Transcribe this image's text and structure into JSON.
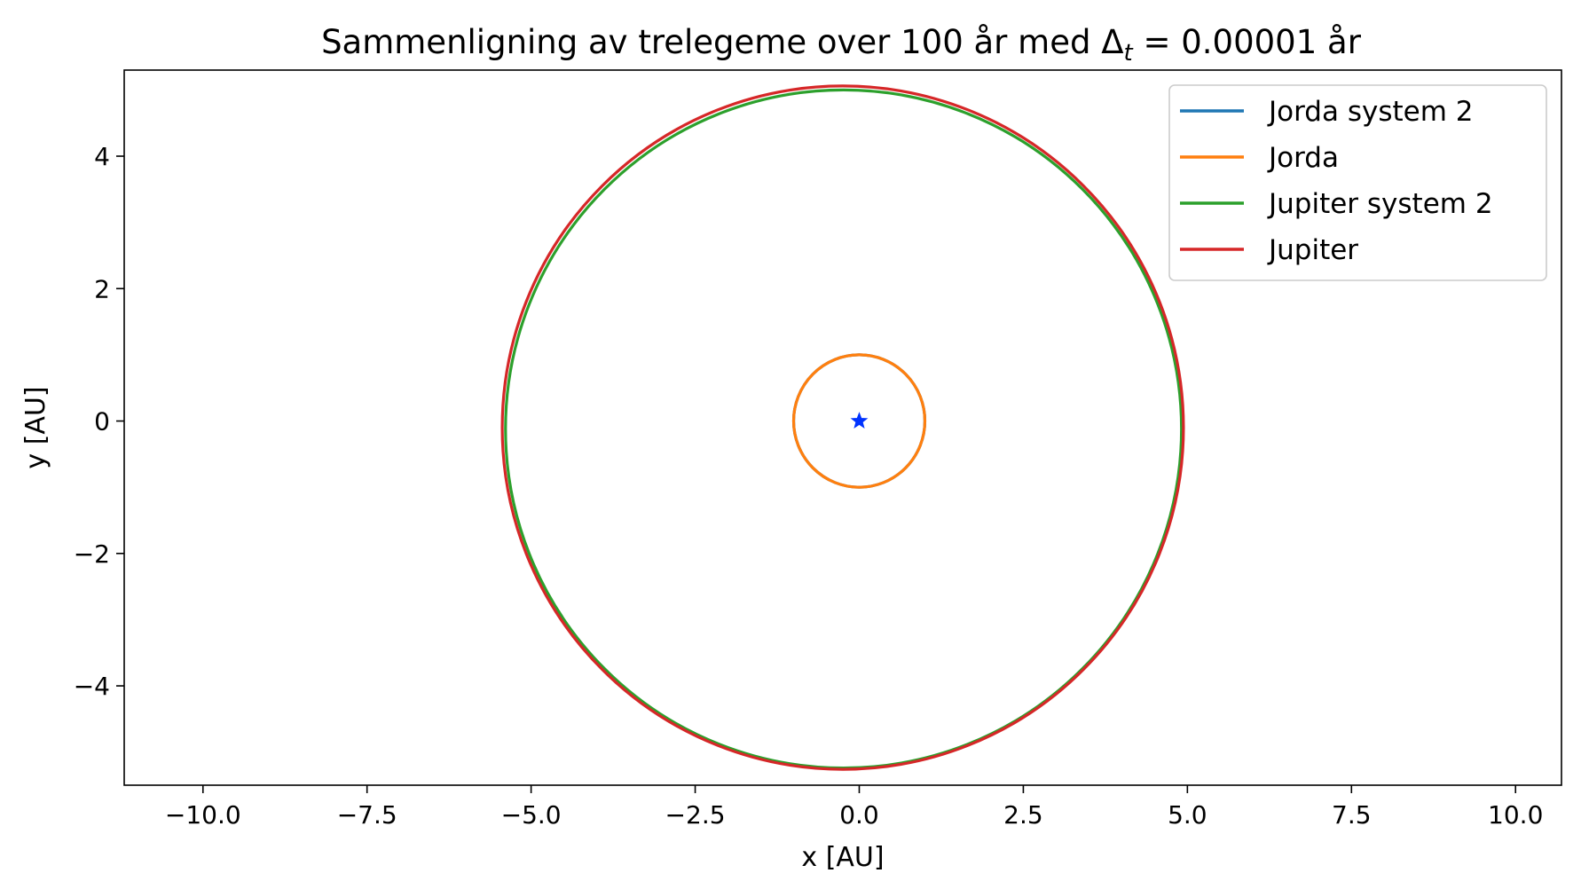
{
  "chart_data": {
    "type": "line",
    "title": {
      "prefix": "Sammenligning av trelegeme over 100 år med ",
      "delta_symbol": "Δ",
      "delta_subscript": "t",
      "suffix": " = 0.00001 år"
    },
    "xlabel": "x [AU]",
    "ylabel": "y [AU]",
    "xlim": [
      -11.2,
      10.7
    ],
    "ylim": [
      -5.5,
      5.3
    ],
    "xticks": [
      -10.0,
      -7.5,
      -5.0,
      -2.5,
      0.0,
      2.5,
      5.0,
      7.5,
      10.0
    ],
    "xtick_labels": [
      "−10.0",
      "−7.5",
      "−5.0",
      "−2.5",
      "0.0",
      "2.5",
      "5.0",
      "7.5",
      "10.0"
    ],
    "yticks": [
      4,
      2,
      0,
      -2,
      -4
    ],
    "ytick_labels": [
      "4",
      "2",
      "0",
      "−2",
      "−4"
    ],
    "grid": false,
    "legend_position": "top-right",
    "series": [
      {
        "name": "Jorda system 2",
        "color": "#1f77b4",
        "shape": "ellipse",
        "center": [
          0.0,
          0.0
        ],
        "radius_x": 1.0,
        "radius_y": 1.0
      },
      {
        "name": "Jorda",
        "color": "#ff7f0e",
        "shape": "ellipse",
        "center": [
          0.0,
          0.0
        ],
        "radius_x": 1.0,
        "radius_y": 1.0
      },
      {
        "name": "Jupiter system 2",
        "color": "#2ca02c",
        "shape": "ellipse",
        "center": [
          -0.24,
          -0.12
        ],
        "radius_x": 5.15,
        "radius_y": 5.12
      },
      {
        "name": "Jupiter",
        "color": "#d62728",
        "shape": "ellipse",
        "center": [
          -0.25,
          -0.1
        ],
        "radius_x": 5.19,
        "radius_y": 5.16
      }
    ],
    "markers": [
      {
        "label": "Sol",
        "symbol": "star",
        "x": 0.0,
        "y": 0.0,
        "color": "#0033ff"
      }
    ]
  }
}
